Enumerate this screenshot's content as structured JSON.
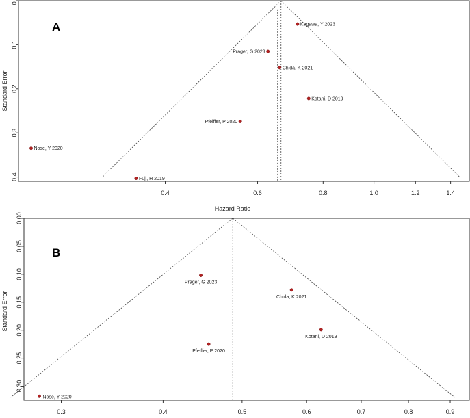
{
  "chart_data": [
    {
      "type": "scatter",
      "panel_label": "A",
      "xlabel": "Hazard Ratio",
      "ylabel": "Standard Error",
      "xscale": "log",
      "xlim": [
        0.21,
        1.52
      ],
      "ylim": [
        0.41,
        0.0
      ],
      "xticks": [
        "0.4",
        "0.6",
        "0.8",
        "1.0",
        "1.2",
        "1.4"
      ],
      "xtick_values": [
        0.4,
        0.6,
        0.8,
        1.0,
        1.2,
        1.4
      ],
      "yticks": [
        "0.0",
        "0.1",
        "0.2",
        "0.3",
        "0.4"
      ],
      "ytick_values": [
        0.0,
        0.1,
        0.2,
        0.3,
        0.4
      ],
      "pooled_estimate": 0.665,
      "pooled_estimate_alt": 0.655,
      "funnel_se_max": 0.4,
      "points": [
        {
          "label": "Kagawa, Y 2023",
          "hr": 0.715,
          "se": 0.053
        },
        {
          "label": "Prager, G 2023",
          "hr": 0.628,
          "se": 0.115
        },
        {
          "label": "Chida, K 2021",
          "hr": 0.661,
          "se": 0.152
        },
        {
          "label": "Kotani, D 2019",
          "hr": 0.751,
          "se": 0.222
        },
        {
          "label": "Pfeiffer, P 2020",
          "hr": 0.556,
          "se": 0.274
        },
        {
          "label": "Nose, Y 2020",
          "hr": 0.222,
          "se": 0.335
        },
        {
          "label": "Fuji, H 2019",
          "hr": 0.352,
          "se": 0.403
        }
      ]
    },
    {
      "type": "scatter",
      "panel_label": "B",
      "xlabel": "",
      "ylabel": "Standard Error",
      "xscale": "log",
      "xlim": [
        0.27,
        0.95
      ],
      "ylim": [
        0.325,
        0.0
      ],
      "xticks": [
        "0.3",
        "0.4",
        "0.5",
        "0.6",
        "0.7",
        "0.8",
        "0.9"
      ],
      "xtick_values": [
        0.3,
        0.4,
        0.5,
        0.6,
        0.7,
        0.8,
        0.9
      ],
      "yticks": [
        "0.00",
        "0.05",
        "0.10",
        "0.15",
        "0.20",
        "0.25",
        "0.30"
      ],
      "ytick_values": [
        0.0,
        0.05,
        0.1,
        0.15,
        0.2,
        0.25,
        0.3
      ],
      "pooled_estimate": 0.487,
      "funnel_se_max": 0.32,
      "points": [
        {
          "label": "Prager, G 2023",
          "hr": 0.445,
          "se": 0.102
        },
        {
          "label": "Chida, K 2021",
          "hr": 0.575,
          "se": 0.128
        },
        {
          "label": "Kotani, D 2019",
          "hr": 0.625,
          "se": 0.199
        },
        {
          "label": "Pfeiffer, P 2020",
          "hr": 0.455,
          "se": 0.225
        },
        {
          "label": "Nose, Y 2020",
          "hr": 0.282,
          "se": 0.318
        }
      ]
    }
  ]
}
